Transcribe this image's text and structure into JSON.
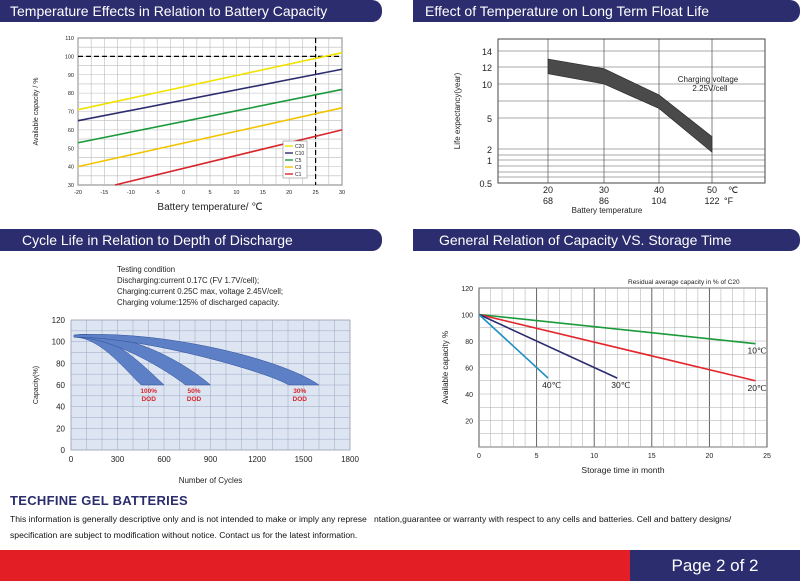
{
  "footer": {
    "brand": "TECHFINE GEL BATTERIES",
    "disclaimer_1": "This information is generally descriptive only and is not intended to make or imply any represe   ntation,guarantee or warranty with respect to any cells and batteries. Cell and battery designs/",
    "disclaimer_2": "specification are subject to modification without notice. Contact us  for the latest information.",
    "page_label": "Page 2 of 2",
    "colors": {
      "red": "#e31e25",
      "navy": "#2b2d6e"
    }
  },
  "chart_data": [
    {
      "id": "temperature-capacity",
      "type": "line",
      "title": "Temperature Effects in Relation to Battery Capacity",
      "xlabel": "Battery temperature/ ℃",
      "ylabel": "Available capacity / %",
      "xlim": [
        -20,
        30
      ],
      "ylim": [
        30,
        110
      ],
      "xticks": [
        "-20",
        "-15",
        "-10",
        "-5",
        "0",
        "5",
        "10",
        "15",
        "20",
        "25",
        "30"
      ],
      "yticks": [
        "30",
        "40",
        "50",
        "60",
        "70",
        "80",
        "90",
        "100",
        "110"
      ],
      "grid": true,
      "legend_position": "lower-right",
      "reference_lines": {
        "y": 100,
        "x": 25,
        "style": "dashed"
      },
      "series": [
        {
          "name": "C20",
          "color": "#f2e200",
          "x": [
            -20,
            30
          ],
          "y": [
            71,
            102
          ]
        },
        {
          "name": "C10",
          "color": "#2b2d6e",
          "x": [
            -20,
            30
          ],
          "y": [
            65,
            93
          ]
        },
        {
          "name": "C5",
          "color": "#1a9a3a",
          "x": [
            -20,
            30
          ],
          "y": [
            53,
            82
          ]
        },
        {
          "name": "C3",
          "color": "#f2c400",
          "x": [
            -20,
            30
          ],
          "y": [
            40,
            72
          ]
        },
        {
          "name": "C1",
          "color": "#d8262c",
          "x": [
            -13,
            30
          ],
          "y": [
            30,
            60
          ]
        }
      ]
    },
    {
      "id": "float-life",
      "type": "area",
      "title": "Effect of Temperature on Long Term Float Life",
      "xlabel": "Battery temperature",
      "ylabel": "Life expectancy(year)",
      "x_celsius": [
        "20",
        "30",
        "40",
        "50"
      ],
      "x_fahrenheit": [
        "68",
        "86",
        "104",
        "122"
      ],
      "x_unit_c": "℃",
      "x_unit_f": "°F",
      "yticks": [
        "0.5",
        "1",
        "2",
        "5",
        "10",
        "12",
        "14"
      ],
      "ylim": [
        0.5,
        14
      ],
      "grid": true,
      "annotation": [
        "Charging voltage",
        "2.25V/cell"
      ],
      "band": {
        "x": [
          20,
          30,
          40,
          50
        ],
        "upper": [
          13,
          11.8,
          8.4,
          3.2
        ],
        "lower": [
          11.2,
          10,
          6.4,
          1.7
        ]
      },
      "color": "#4a4a4a"
    },
    {
      "id": "cycle-life",
      "type": "area",
      "title": "Cycle Life in Relation to Depth of Discharge",
      "xlabel": "Number of Cycles",
      "ylabel": "Capacity(%)",
      "xlim": [
        0,
        1800
      ],
      "ylim": [
        0,
        120
      ],
      "xticks": [
        "0",
        "300",
        "600",
        "900",
        "1200",
        "1500",
        "1800"
      ],
      "yticks": [
        "0",
        "20",
        "40",
        "60",
        "80",
        "100",
        "120"
      ],
      "grid": true,
      "notes": [
        "Testing condition",
        "Discharging:current 0.17C (FV 1.7V/cell);",
        "Charging:current 0.25C max, voltage 2.45V/cell;",
        "Charging volume:125% of discharged capacity."
      ],
      "series": [
        {
          "name": "100% DOD",
          "label_1": "100%",
          "label_2": "DOD",
          "end_cycles": 600,
          "end_capacity": 60
        },
        {
          "name": "50% DOD",
          "label_1": "50%",
          "label_2": "DOD",
          "end_cycles": 900,
          "end_capacity": 60
        },
        {
          "name": "30% DOD",
          "label_1": "30%",
          "label_2": "DOD",
          "end_cycles": 1600,
          "end_capacity": 60
        }
      ],
      "color": "#5c7fc6",
      "plot_bg": "#dde5f2"
    },
    {
      "id": "storage",
      "type": "line",
      "title": "General Relation of Capacity VS. Storage Time",
      "xlabel": "Storage time in month",
      "ylabel": "Available capacity %",
      "subtitle": "Residual average capacity in % of C20",
      "xlim": [
        0,
        25
      ],
      "ylim": [
        0,
        120
      ],
      "xticks": [
        "0",
        "5",
        "10",
        "15",
        "20",
        "25"
      ],
      "yticks": [
        "20",
        "40",
        "60",
        "80",
        "100",
        "120"
      ],
      "grid": true,
      "series": [
        {
          "name": "10℃",
          "color": "#1a9a3a",
          "x": [
            0,
            24
          ],
          "y": [
            100,
            78
          ]
        },
        {
          "name": "20℃",
          "color": "#e3262c",
          "x": [
            0,
            24
          ],
          "y": [
            100,
            50
          ]
        },
        {
          "name": "30℃",
          "color": "#2b2d6e",
          "x": [
            0,
            12
          ],
          "y": [
            100,
            52
          ]
        },
        {
          "name": "40℃",
          "color": "#1f8fc4",
          "x": [
            0,
            6
          ],
          "y": [
            100,
            52
          ]
        }
      ]
    }
  ]
}
